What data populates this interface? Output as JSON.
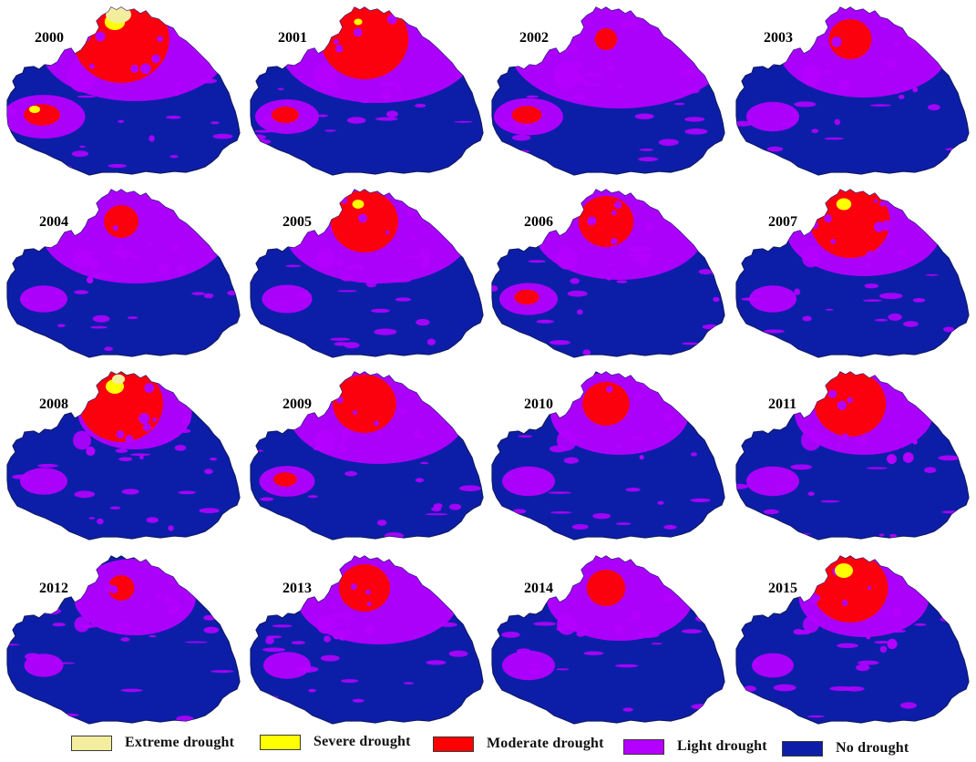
{
  "panels": [
    {
      "year": "2000",
      "pattern": {
        "extreme": 0.9,
        "severe": 0.6,
        "moderate": 0.95,
        "light": 0.7,
        "west": 0.85
      }
    },
    {
      "year": "2001",
      "pattern": {
        "extreme": 0.0,
        "severe": 0.05,
        "moderate": 0.85,
        "light": 0.75,
        "west": 0.5
      }
    },
    {
      "year": "2002",
      "pattern": {
        "extreme": 0.0,
        "severe": 0.0,
        "moderate": 0.05,
        "light": 0.9,
        "west": 0.6
      }
    },
    {
      "year": "2003",
      "pattern": {
        "extreme": 0.0,
        "severe": 0.0,
        "moderate": 0.3,
        "light": 0.6,
        "west": 0.3
      }
    },
    {
      "year": "2004",
      "pattern": {
        "extreme": 0.0,
        "severe": 0.0,
        "moderate": 0.2,
        "light": 0.7,
        "west": 0.2
      }
    },
    {
      "year": "2005",
      "pattern": {
        "extreme": 0.0,
        "severe": 0.2,
        "moderate": 0.6,
        "light": 0.7,
        "west": 0.25
      }
    },
    {
      "year": "2006",
      "pattern": {
        "extreme": 0.0,
        "severe": 0.0,
        "moderate": 0.45,
        "light": 0.6,
        "west": 0.4
      }
    },
    {
      "year": "2007",
      "pattern": {
        "extreme": 0.0,
        "severe": 0.35,
        "moderate": 0.75,
        "light": 0.5,
        "west": 0.2
      }
    },
    {
      "year": "2008",
      "pattern": {
        "extreme": 0.2,
        "severe": 0.5,
        "moderate": 0.8,
        "light": 0.25,
        "west": 0.2
      }
    },
    {
      "year": "2009",
      "pattern": {
        "extreme": 0.0,
        "severe": 0.0,
        "moderate": 0.55,
        "light": 0.65,
        "west": 0.35
      }
    },
    {
      "year": "2010",
      "pattern": {
        "extreme": 0.0,
        "severe": 0.0,
        "moderate": 0.35,
        "light": 0.4,
        "west": 0.3
      }
    },
    {
      "year": "2011",
      "pattern": {
        "extreme": 0.0,
        "severe": 0.0,
        "moderate": 0.65,
        "light": 0.4,
        "west": 0.3
      }
    },
    {
      "year": "2012",
      "pattern": {
        "extreme": 0.0,
        "severe": 0.0,
        "moderate": 0.1,
        "light": 0.3,
        "west": 0.05
      }
    },
    {
      "year": "2013",
      "pattern": {
        "extreme": 0.0,
        "severe": 0.0,
        "moderate": 0.4,
        "light": 0.55,
        "west": 0.2
      }
    },
    {
      "year": "2014",
      "pattern": {
        "extreme": 0.0,
        "severe": 0.0,
        "moderate": 0.25,
        "light": 0.45,
        "west": 0.3
      }
    },
    {
      "year": "2015",
      "pattern": {
        "extreme": 0.0,
        "severe": 0.5,
        "moderate": 0.7,
        "light": 0.35,
        "west": 0.1
      }
    }
  ],
  "legend": [
    {
      "key": "extreme",
      "label": "Extreme drought",
      "color": "#f3ee9e"
    },
    {
      "key": "severe",
      "label": "Severe drought",
      "color": "#ffff00"
    },
    {
      "key": "moderate",
      "label": "Moderate drought",
      "color": "#ff0000"
    },
    {
      "key": "light",
      "label": "Light drought",
      "color": "#b400ff"
    },
    {
      "key": "none",
      "label": "No drought",
      "color": "#0c1ea8"
    }
  ]
}
